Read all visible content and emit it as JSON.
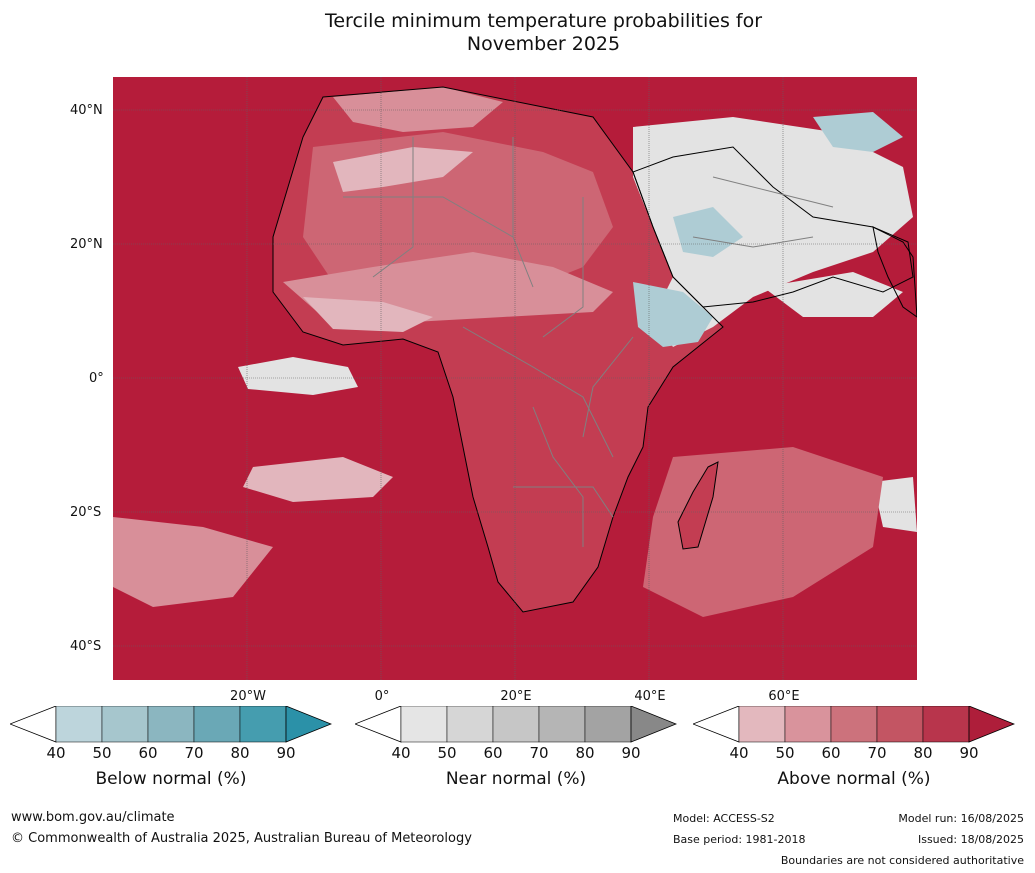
{
  "title": {
    "line1": "Tercile minimum temperature probabilities for",
    "line2": "November 2025"
  },
  "map": {
    "lat_labels": [
      "40°N",
      "20°N",
      "0°",
      "20°S",
      "40°S"
    ],
    "lon_labels": [
      "20°W",
      "0°",
      "20°E",
      "40°E",
      "60°E"
    ],
    "colors": {
      "ocean_deep": "#b51c3a",
      "level_80": "#c33d52",
      "level_70": "#cd6674",
      "level_60": "#d88f99",
      "level_50": "#e2b6bd",
      "near_normal": "#e3e3e3",
      "below_normal": "#aeccd4"
    }
  },
  "colorbars": [
    {
      "name": "below",
      "label": "Below normal (%)",
      "ticks": [
        "40",
        "50",
        "60",
        "70",
        "80",
        "90"
      ],
      "colors": [
        "#ffffff",
        "#bdd5dc",
        "#a6c6cd",
        "#8bb6c0",
        "#6aa8b6",
        "#459daf",
        "#2b91a8"
      ]
    },
    {
      "name": "near",
      "label": "Near normal (%)",
      "ticks": [
        "40",
        "50",
        "60",
        "70",
        "80",
        "90"
      ],
      "colors": [
        "#ffffff",
        "#e5e5e5",
        "#d6d6d6",
        "#c6c6c6",
        "#b5b5b5",
        "#a3a3a3",
        "#888888"
      ]
    },
    {
      "name": "above",
      "label": "Above normal (%)",
      "ticks": [
        "40",
        "50",
        "60",
        "70",
        "80",
        "90"
      ],
      "colors": [
        "#ffffff",
        "#e3b8be",
        "#d9939c",
        "#cc727c",
        "#c35563",
        "#b8354c",
        "#ae1e3a"
      ]
    }
  ],
  "footer": {
    "url": "www.bom.gov.au/climate",
    "copyright": "© Commonwealth of Australia 2025, Australian Bureau of Meteorology",
    "model": "Model: ACCESS-S2",
    "base_period": "Base period: 1981-2018",
    "model_run": "Model run: 16/08/2025",
    "issued": "Issued: 18/08/2025",
    "disclaimer": "Boundaries are not considered authoritative"
  }
}
